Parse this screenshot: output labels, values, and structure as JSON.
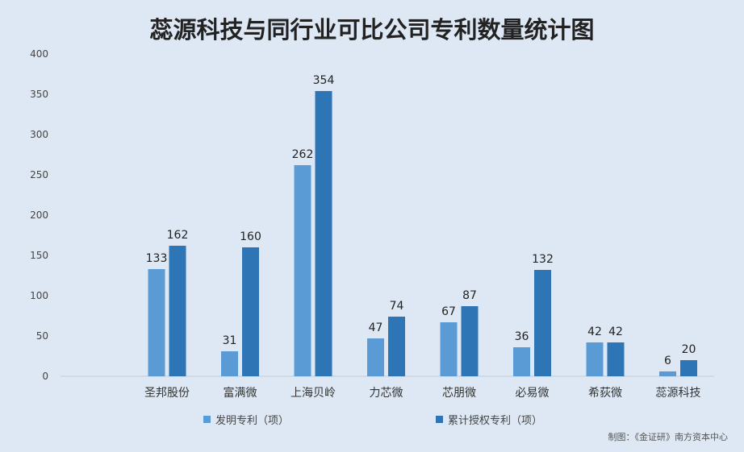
{
  "chart_data": {
    "type": "bar",
    "title": "蕊源科技与同行业可比公司专利数量统计图",
    "categories": [
      "圣邦股份",
      "富满微",
      "上海贝岭",
      "力芯微",
      "芯朋微",
      "必易微",
      "希荻微",
      "蕊源科技"
    ],
    "series": [
      {
        "name": "发明专利（项）",
        "values": [
          133,
          31,
          262,
          47,
          67,
          36,
          42,
          6
        ],
        "color": "#5b9bd5"
      },
      {
        "name": "累计授权专利（项）",
        "values": [
          162,
          160,
          354,
          74,
          87,
          132,
          42,
          20
        ],
        "color": "#2e75b6"
      }
    ],
    "ylim": [
      0,
      400
    ],
    "yticks": [
      0,
      50,
      100,
      150,
      200,
      250,
      300,
      350,
      400
    ],
    "xlabel": "",
    "ylabel": "",
    "grid": false,
    "legend_position": "bottom"
  },
  "credit": "制图：《金证研》南方资本中心"
}
